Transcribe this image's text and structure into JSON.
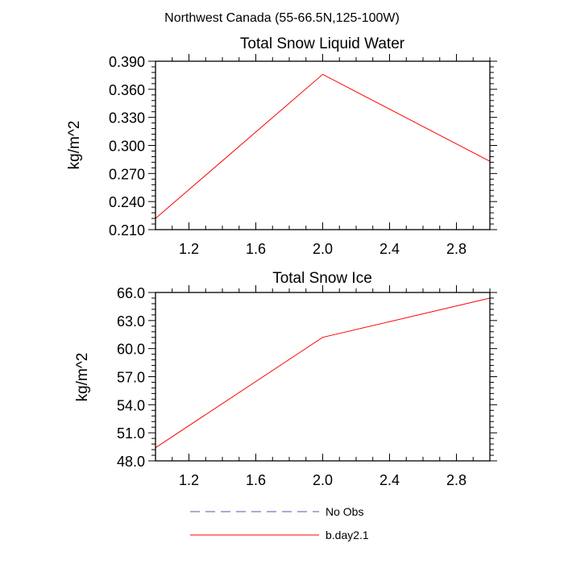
{
  "figure": {
    "suptitle": "Northwest Canada (55-66.5N,125-100W)"
  },
  "chart_data": [
    {
      "type": "line",
      "title": "Total Snow Liquid Water",
      "xlabel": "",
      "ylabel": "kg/m^2",
      "xlim": [
        1.0,
        3.0
      ],
      "ylim": [
        0.21,
        0.39
      ],
      "xticks": [
        1.2,
        1.6,
        2.0,
        2.4,
        2.8
      ],
      "xtick_labels": [
        "1.2",
        "1.6",
        "2.0",
        "2.4",
        "2.8"
      ],
      "yticks": [
        0.21,
        0.24,
        0.27,
        0.3,
        0.33,
        0.36,
        0.39
      ],
      "ytick_labels": [
        "0.210",
        "0.240",
        "0.270",
        "0.300",
        "0.330",
        "0.360",
        "0.390"
      ],
      "series": [
        {
          "name": "b.day2.1",
          "color": "#ff0000",
          "x": [
            1,
            2,
            3
          ],
          "y": [
            0.222,
            0.376,
            0.283
          ]
        }
      ]
    },
    {
      "type": "line",
      "title": "Total Snow Ice",
      "xlabel": "",
      "ylabel": "kg/m^2",
      "xlim": [
        1.0,
        3.0
      ],
      "ylim": [
        48.0,
        66.0
      ],
      "xticks": [
        1.2,
        1.6,
        2.0,
        2.4,
        2.8
      ],
      "xtick_labels": [
        "1.2",
        "1.6",
        "2.0",
        "2.4",
        "2.8"
      ],
      "yticks": [
        48,
        51,
        54,
        57,
        60,
        63,
        66
      ],
      "ytick_labels": [
        "48.0",
        "51.0",
        "54.0",
        "57.0",
        "60.0",
        "63.0",
        "66.0"
      ],
      "series": [
        {
          "name": "b.day2.1",
          "color": "#ff0000",
          "x": [
            1,
            2,
            3
          ],
          "y": [
            49.4,
            61.2,
            65.4
          ]
        }
      ]
    }
  ],
  "legend": {
    "entries": [
      {
        "label": "No Obs",
        "color": "#5555bb",
        "style": "dashed"
      },
      {
        "label": "b.day2.1",
        "color": "#ff0000",
        "style": "solid"
      }
    ]
  }
}
